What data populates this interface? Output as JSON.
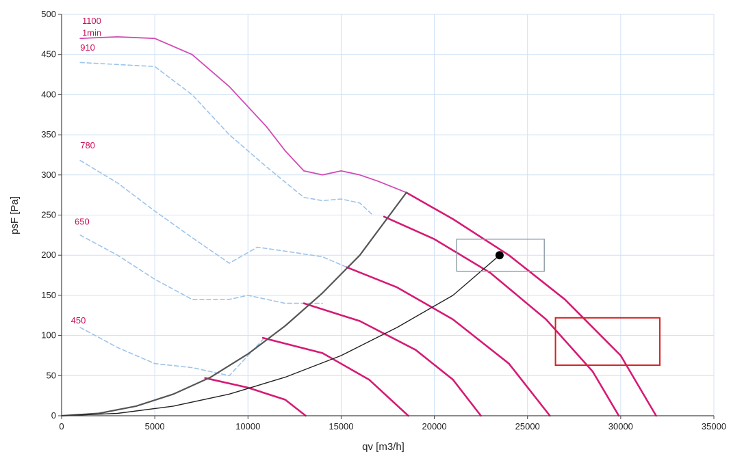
{
  "chart_data": {
    "type": "line",
    "title": "",
    "xlabel": "qv [m3/h]",
    "ylabel": "psF [Pa]",
    "xlim": [
      0,
      35000
    ],
    "ylim": [
      0,
      500
    ],
    "xticks": [
      0,
      5000,
      10000,
      15000,
      20000,
      25000,
      30000,
      35000
    ],
    "yticks": [
      0,
      50,
      100,
      150,
      200,
      250,
      300,
      350,
      400,
      450,
      500
    ],
    "grid": true,
    "legend": "none",
    "rpm_labels": [
      {
        "text": "1100",
        "x": 1100,
        "y": 488
      },
      {
        "text": "1min",
        "x": 1100,
        "y": 473
      },
      {
        "text": "910",
        "x": 1000,
        "y": 455
      },
      {
        "text": "780",
        "x": 1000,
        "y": 333
      },
      {
        "text": "650",
        "x": 700,
        "y": 238
      },
      {
        "text": "450",
        "x": 500,
        "y": 115
      }
    ],
    "series": [
      {
        "role": "pink-envelope",
        "color": "#d24ab4",
        "x": [
          1000,
          3000,
          5000,
          7000,
          9000,
          11000,
          12000,
          13000,
          14000,
          15000,
          16000,
          17000,
          18500
        ],
        "y": [
          470,
          472,
          470,
          450,
          410,
          360,
          330,
          305,
          300,
          305,
          300,
          292,
          278
        ]
      },
      {
        "role": "dashed",
        "color": "#9ec4ea",
        "x": [
          1000,
          5000,
          7000,
          9000,
          11000,
          13000,
          14000,
          15000,
          16000,
          16700
        ],
        "y": [
          440,
          435,
          400,
          350,
          310,
          272,
          268,
          270,
          265,
          250
        ]
      },
      {
        "role": "dashed",
        "color": "#9ec4ea",
        "x": [
          1000,
          3000,
          5000,
          7000,
          9000,
          10500,
          12000,
          14000,
          15300
        ],
        "y": [
          318,
          290,
          255,
          222,
          190,
          210,
          205,
          198,
          185
        ]
      },
      {
        "role": "dashed",
        "color": "#9ec4ea",
        "x": [
          1000,
          3000,
          5000,
          7000,
          9000,
          10000,
          12000,
          14000
        ],
        "y": [
          225,
          200,
          170,
          145,
          145,
          150,
          140,
          140
        ]
      },
      {
        "role": "dashed",
        "color": "#9ec4ea",
        "x": [
          1000,
          3000,
          5000,
          7000,
          9000,
          10800
        ],
        "y": [
          110,
          85,
          65,
          60,
          50,
          95
        ]
      },
      {
        "role": "pink-operating",
        "color": "#d61a74",
        "x": [
          18500,
          21000,
          24000,
          27000,
          30000,
          31900
        ],
        "y": [
          278,
          245,
          200,
          145,
          75,
          0
        ]
      },
      {
        "role": "pink-operating",
        "color": "#d61a74",
        "x": [
          17300,
          20000,
          23000,
          26000,
          28500,
          29900
        ],
        "y": [
          248,
          220,
          178,
          120,
          55,
          0
        ]
      },
      {
        "role": "pink-operating",
        "color": "#d61a74",
        "x": [
          15300,
          18000,
          21000,
          24000,
          26200
        ],
        "y": [
          185,
          160,
          120,
          65,
          0
        ]
      },
      {
        "role": "pink-operating",
        "color": "#d61a74",
        "x": [
          13000,
          16000,
          19000,
          21000,
          22500
        ],
        "y": [
          140,
          118,
          82,
          45,
          0
        ]
      },
      {
        "role": "pink-operating",
        "color": "#d61a74",
        "x": [
          10800,
          14000,
          16500,
          18600
        ],
        "y": [
          97,
          78,
          45,
          0
        ]
      },
      {
        "role": "pink-operating",
        "color": "#d61a74",
        "x": [
          7700,
          10000,
          12000,
          13100
        ],
        "y": [
          47,
          35,
          20,
          0
        ]
      },
      {
        "role": "system-curve",
        "color": "#555555",
        "x": [
          0,
          2000,
          4000,
          6000,
          8000,
          10000,
          12000,
          14000,
          16000,
          18500
        ],
        "y": [
          0,
          3,
          12,
          27,
          48,
          77,
          112,
          153,
          200,
          278
        ]
      },
      {
        "role": "system-curve",
        "color": "#222222",
        "x": [
          0,
          3000,
          6000,
          9000,
          12000,
          15000,
          18000,
          21000,
          23500
        ],
        "y": [
          0,
          3,
          12,
          27,
          48,
          75,
          110,
          150,
          200
        ]
      }
    ],
    "operating_point": {
      "x": 23500,
      "y": 200,
      "color": "#000000"
    },
    "annotations": [
      {
        "type": "rect",
        "x0": 21200,
        "x1": 25900,
        "y0": 180,
        "y1": 220,
        "color": "#8a9aa8"
      },
      {
        "type": "rect",
        "x0": 26500,
        "x1": 32100,
        "y0": 63,
        "y1": 122,
        "color": "#d82020"
      }
    ]
  }
}
